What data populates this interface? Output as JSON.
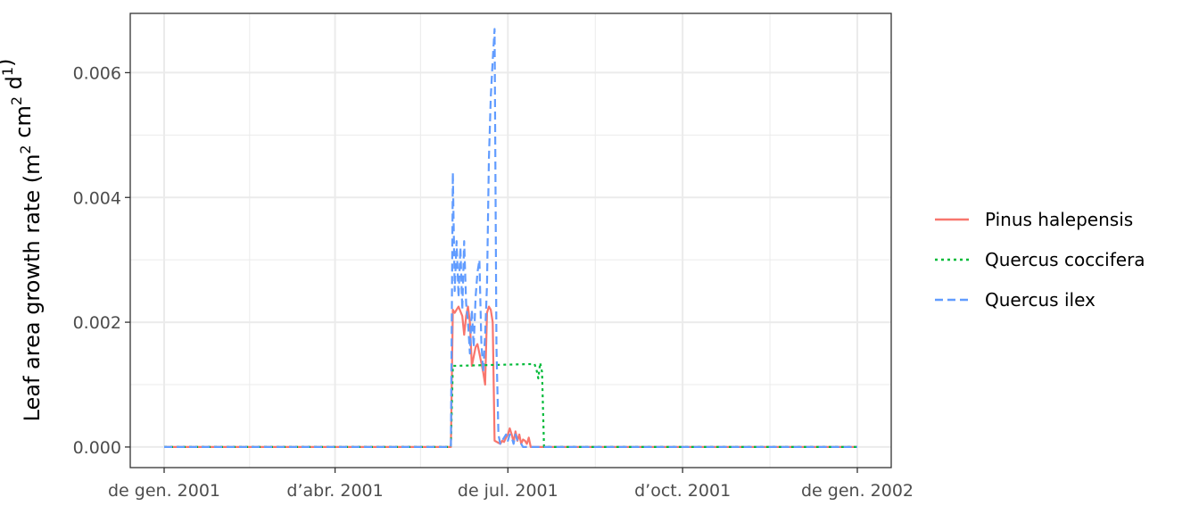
{
  "chart_data": {
    "type": "line",
    "title": "",
    "xlabel": "",
    "ylabel": {
      "prefix": "Leaf area growth rate (m",
      "sup1": "2",
      "mid": " cm",
      "sup2": "2",
      "mid2": " d",
      "sup3": "1",
      "suffix": ")"
    },
    "x_range": [
      "2001-01-01",
      "2002-01-01"
    ],
    "x_ticks": [
      {
        "date": "2001-01-01",
        "label": "de gen. 2001"
      },
      {
        "date": "2001-04-01",
        "label": "d’abr. 2001"
      },
      {
        "date": "2001-07-01",
        "label": "de jul. 2001"
      },
      {
        "date": "2001-10-01",
        "label": "d’oct. 2001"
      },
      {
        "date": "2002-01-01",
        "label": "de gen. 2002"
      }
    ],
    "x_minor_ticks": [
      "2001-02-15",
      "2001-05-16",
      "2001-08-16",
      "2001-11-16"
    ],
    "y_range": [
      -0.00033,
      0.00695
    ],
    "y_ticks": [
      0,
      0.002,
      0.004,
      0.006
    ],
    "y_tick_labels": [
      "0.000",
      "0.002",
      "0.004",
      "0.006"
    ],
    "y_minor_ticks": [
      0.001,
      0.003,
      0.005
    ],
    "grid": true,
    "legend_position": "right",
    "series": [
      {
        "name": "Pinus halepensis",
        "color": "#F8766D",
        "dash": "solid",
        "points": [
          [
            "2001-01-01",
            0
          ],
          [
            "2001-06-01",
            0
          ],
          [
            "2001-06-02",
            0.0022
          ],
          [
            "2001-06-03",
            0.00215
          ],
          [
            "2001-06-04",
            0.0022
          ],
          [
            "2001-06-05",
            0.00225
          ],
          [
            "2001-06-07",
            0.0021
          ],
          [
            "2001-06-08",
            0.0018
          ],
          [
            "2001-06-09",
            0.0021
          ],
          [
            "2001-06-10",
            0.00225
          ],
          [
            "2001-06-11",
            0.002
          ],
          [
            "2001-06-12",
            0.0013
          ],
          [
            "2001-06-14",
            0.0016
          ],
          [
            "2001-06-15",
            0.00165
          ],
          [
            "2001-06-16",
            0.0015
          ],
          [
            "2001-06-18",
            0.0012
          ],
          [
            "2001-06-19",
            0.001
          ],
          [
            "2001-06-20",
            0.00215
          ],
          [
            "2001-06-21",
            0.00225
          ],
          [
            "2001-06-22",
            0.0022
          ],
          [
            "2001-06-23",
            0.002
          ],
          [
            "2001-06-24",
            0.0001
          ],
          [
            "2001-06-27",
            5e-05
          ],
          [
            "2001-06-28",
            0.0001
          ],
          [
            "2001-06-29",
            8e-05
          ],
          [
            "2001-06-30",
            0.00015
          ],
          [
            "2001-07-01",
            0.0002
          ],
          [
            "2001-07-02",
            0.0003
          ],
          [
            "2001-07-03",
            0.0002
          ],
          [
            "2001-07-04",
            8e-05
          ],
          [
            "2001-07-05",
            0.00025
          ],
          [
            "2001-07-06",
            0.0001
          ],
          [
            "2001-07-07",
            0.0002
          ],
          [
            "2001-07-08",
            5e-05
          ],
          [
            "2001-07-09",
            0.00012
          ],
          [
            "2001-07-10",
            0.0001
          ],
          [
            "2001-07-11",
            5e-05
          ],
          [
            "2001-07-12",
            0.00015
          ],
          [
            "2001-07-13",
            0
          ],
          [
            "2002-01-01",
            0
          ]
        ]
      },
      {
        "name": "Quercus coccifera",
        "color": "#00BA38",
        "dash": "dotted",
        "points": [
          [
            "2001-01-01",
            0
          ],
          [
            "2001-06-01",
            0
          ],
          [
            "2001-06-02",
            0.0013
          ],
          [
            "2001-07-15",
            0.00133
          ],
          [
            "2001-07-16",
            0.00125
          ],
          [
            "2001-07-17",
            0.0011
          ],
          [
            "2001-07-18",
            0.00135
          ],
          [
            "2001-07-19",
            0.0012
          ],
          [
            "2001-07-20",
            0
          ],
          [
            "2002-01-01",
            0
          ]
        ]
      },
      {
        "name": "Quercus ilex",
        "color": "#619CFF",
        "dash": "dashed",
        "points": [
          [
            "2001-01-01",
            0
          ],
          [
            "2001-06-01",
            0
          ],
          [
            "2001-06-02",
            0.0044
          ],
          [
            "2001-06-03",
            0.0025
          ],
          [
            "2001-06-04",
            0.0033
          ],
          [
            "2001-06-05",
            0.0024
          ],
          [
            "2001-06-06",
            0.0032
          ],
          [
            "2001-06-07",
            0.0022
          ],
          [
            "2001-06-08",
            0.0033
          ],
          [
            "2001-06-09",
            0.0023
          ],
          [
            "2001-06-10",
            0.002
          ],
          [
            "2001-06-11",
            0.0015
          ],
          [
            "2001-06-12",
            0.0022
          ],
          [
            "2001-06-13",
            0.0016
          ],
          [
            "2001-06-14",
            0.0024
          ],
          [
            "2001-06-15",
            0.0028
          ],
          [
            "2001-06-16",
            0.003
          ],
          [
            "2001-06-17",
            0.0017
          ],
          [
            "2001-06-18",
            0.0012
          ],
          [
            "2001-06-19",
            0.0018
          ],
          [
            "2001-06-20",
            0.0026
          ],
          [
            "2001-06-21",
            0.0046
          ],
          [
            "2001-06-22",
            0.0056
          ],
          [
            "2001-06-23",
            0.0062
          ],
          [
            "2001-06-24",
            0.0067
          ],
          [
            "2001-06-25",
            0.0016
          ],
          [
            "2001-06-26",
            0.0002
          ],
          [
            "2001-06-27",
            5e-05
          ],
          [
            "2001-06-28",
            0.0001
          ],
          [
            "2001-06-29",
            0.00015
          ],
          [
            "2001-06-30",
            0.0002
          ],
          [
            "2001-07-01",
            0.0001
          ],
          [
            "2001-07-02",
            0.0002
          ],
          [
            "2001-07-03",
            0.00015
          ],
          [
            "2001-07-04",
            5e-05
          ],
          [
            "2001-07-05",
            0.0002
          ],
          [
            "2001-07-06",
            0.0001
          ],
          [
            "2001-07-08",
            5e-05
          ],
          [
            "2001-07-09",
            0
          ],
          [
            "2002-01-01",
            0
          ]
        ]
      }
    ]
  }
}
